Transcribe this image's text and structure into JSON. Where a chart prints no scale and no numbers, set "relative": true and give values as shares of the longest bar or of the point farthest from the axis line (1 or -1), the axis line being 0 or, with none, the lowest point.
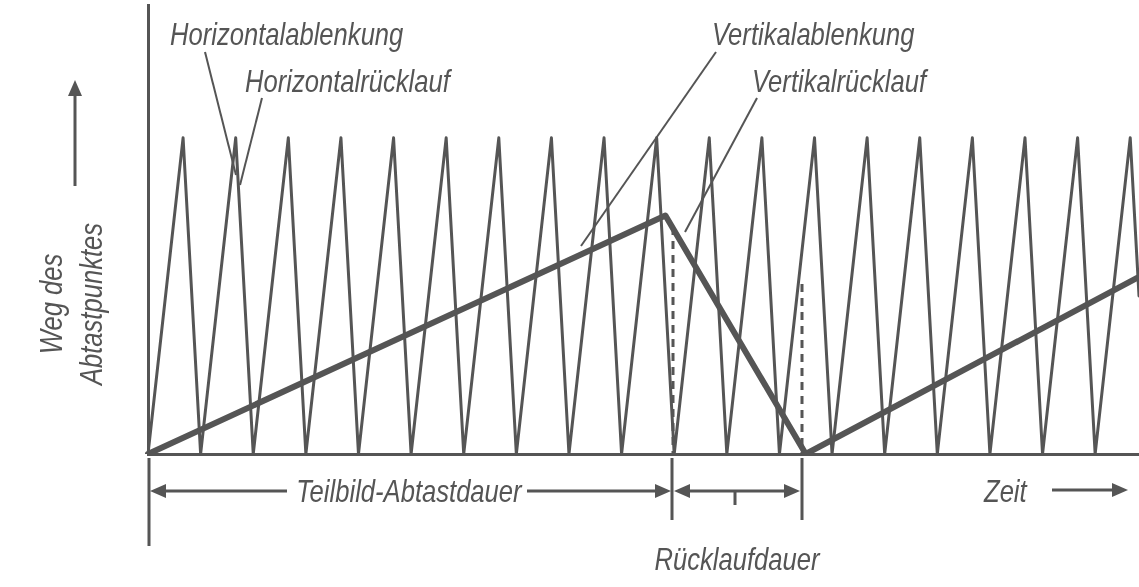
{
  "chart_data": {
    "type": "line",
    "relative": true,
    "legend": false,
    "marker": "none",
    "xlabel": "Zeit",
    "ylabel": "Weg des Abtastpunktes",
    "categories": [
      null,
      null,
      null,
      null,
      null,
      null,
      null,
      null,
      null,
      null,
      null,
      null,
      null,
      null,
      null,
      null,
      null,
      null,
      null,
      null,
      null,
      null,
      null,
      null,
      null,
      null,
      null,
      null,
      null,
      null,
      null,
      null,
      null,
      null,
      null,
      null,
      null,
      null,
      null,
      null,
      null,
      null,
      null,
      null,
      null,
      null,
      null,
      null,
      null,
      null,
      null,
      null,
      null,
      null,
      null,
      null,
      null,
      null,
      null,
      null,
      null,
      null,
      null,
      null,
      null,
      null,
      null,
      null,
      null,
      null,
      null,
      null,
      null,
      null,
      null,
      null,
      null,
      null,
      null,
      null,
      null,
      null,
      null,
      null,
      null,
      null,
      null,
      null,
      null,
      null,
      null,
      null,
      null,
      null,
      null,
      null,
      null,
      null,
      null,
      null,
      null,
      null,
      null,
      null,
      null,
      null,
      null,
      null,
      null,
      null,
      null,
      null,
      null,
      null
    ],
    "series": [
      {
        "color": "#555555",
        "values": [
          0,
          null,
          null,
          null,
          1,
          null,
          0,
          null,
          null,
          null,
          1,
          null,
          0,
          null,
          null,
          null,
          1,
          null,
          0,
          null,
          null,
          null,
          1,
          null,
          0,
          null,
          null,
          null,
          1,
          null,
          0,
          null,
          null,
          null,
          1,
          null,
          0,
          null,
          null,
          null,
          1,
          null,
          0,
          null,
          null,
          null,
          1,
          null,
          0,
          null,
          null,
          null,
          1,
          null,
          0,
          null,
          null,
          null,
          1,
          null,
          0,
          null,
          null,
          null,
          1,
          null,
          0,
          null,
          null,
          null,
          1,
          null,
          0,
          null,
          null,
          null,
          1,
          null,
          0,
          null,
          null,
          null,
          1,
          null,
          0,
          null,
          null,
          null,
          1,
          null,
          0,
          null,
          null,
          null,
          1,
          null,
          0,
          null,
          null,
          null,
          1,
          null,
          0,
          null,
          null,
          null,
          1,
          null,
          0,
          null,
          null,
          null,
          1,
          0.5
        ]
      },
      {
        "color": "#555555",
        "values": [
          0,
          null,
          null,
          null,
          null,
          null,
          null,
          null,
          null,
          null,
          null,
          null,
          null,
          null,
          null,
          null,
          null,
          null,
          null,
          null,
          null,
          null,
          null,
          null,
          null,
          null,
          null,
          null,
          null,
          null,
          null,
          null,
          null,
          null,
          null,
          null,
          null,
          null,
          null,
          null,
          null,
          null,
          null,
          null,
          null,
          null,
          null,
          null,
          null,
          null,
          null,
          null,
          null,
          null,
          null,
          null,
          null,
          null,
          null,
          0.754,
          null,
          null,
          null,
          null,
          null,
          null,
          null,
          null,
          null,
          null,
          null,
          null,
          null,
          null,
          null,
          0,
          null,
          null,
          null,
          null,
          null,
          null,
          null,
          null,
          null,
          null,
          null,
          null,
          null,
          null,
          null,
          null,
          null,
          null,
          null,
          null,
          null,
          null,
          null,
          null,
          null,
          null,
          null,
          null,
          null,
          null,
          null,
          null,
          null,
          null,
          null,
          null,
          null,
          0.56
        ]
      }
    ],
    "annotations": [
      "Horizontalablenkung",
      "Horizontalrücklauf",
      "Vertikalablenkung",
      "Vertikalrücklauf",
      "Teilbild-Abtastdauer",
      "Rücklaufdauer"
    ]
  }
}
